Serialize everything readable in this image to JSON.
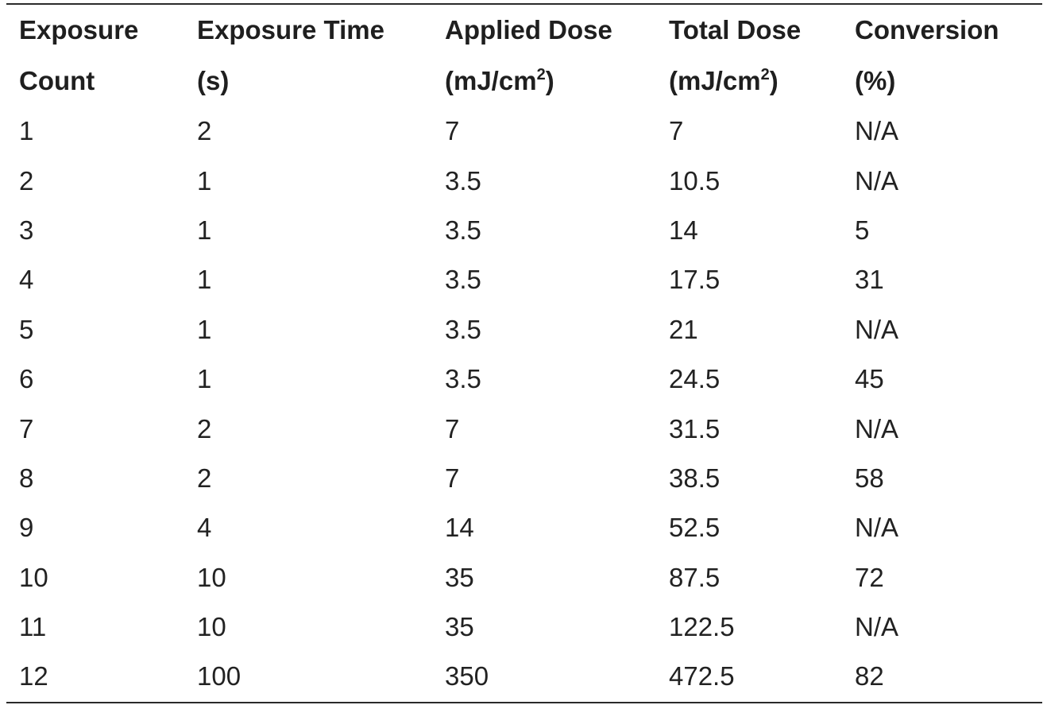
{
  "table": {
    "headers": [
      {
        "line1": "Exposure",
        "line2": "Count",
        "sup": "",
        "close": ""
      },
      {
        "line1": "Exposure Time",
        "line2": "(s)",
        "sup": "",
        "close": ""
      },
      {
        "line1": "Applied Dose",
        "line2": "(mJ/cm",
        "sup": "2",
        "close": ")"
      },
      {
        "line1": "Total Dose",
        "line2": "(mJ/cm",
        "sup": "2",
        "close": ")"
      },
      {
        "line1": "Conversion",
        "line2": "(%)",
        "sup": "",
        "close": ""
      }
    ],
    "rows": [
      [
        "1",
        "2",
        "7",
        "7",
        "N/A"
      ],
      [
        "2",
        "1",
        "3.5",
        "10.5",
        "N/A"
      ],
      [
        "3",
        "1",
        "3.5",
        "14",
        "5"
      ],
      [
        "4",
        "1",
        "3.5",
        "17.5",
        "31"
      ],
      [
        "5",
        "1",
        "3.5",
        "21",
        "N/A"
      ],
      [
        "6",
        "1",
        "3.5",
        "24.5",
        "45"
      ],
      [
        "7",
        "2",
        "7",
        "31.5",
        "N/A"
      ],
      [
        "8",
        "2",
        "7",
        "38.5",
        "58"
      ],
      [
        "9",
        "4",
        "14",
        "52.5",
        "N/A"
      ],
      [
        "10",
        "10",
        "35",
        "87.5",
        "72"
      ],
      [
        "11",
        "10",
        "35",
        "122.5",
        "N/A"
      ],
      [
        "12",
        "100",
        "350",
        "472.5",
        "82"
      ]
    ]
  }
}
